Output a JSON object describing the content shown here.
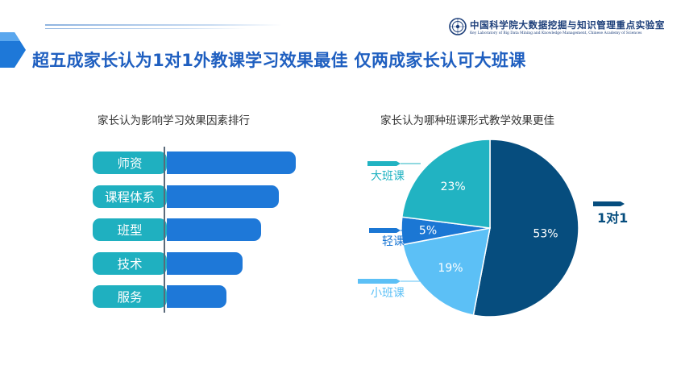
{
  "header": {
    "title": "超五成家长认为1对1外教课学习效果最佳 仅两成家长认可大班课",
    "logo_cn": "中国科学院大数据挖掘与知识管理重点实验室",
    "logo_en": "Key Laboratory of Big Data Mining and Knowledge Management, Chinese Academy of Sciences"
  },
  "colors": {
    "title": "#1f5fc0",
    "bar": "#1e78d8",
    "pill": "#1fb0c0",
    "slice_1v1": "#064d7e",
    "slice_small": "#5cc0f6",
    "slice_light": "#1b77d4",
    "slice_big": "#21b3c2"
  },
  "chart_data": [
    {
      "type": "bar",
      "orientation": "horizontal",
      "title": "家长认为影响学习效果因素排行",
      "categories": [
        "师资",
        "课程体系",
        "班型",
        "技术",
        "服务"
      ],
      "values": [
        100,
        87,
        73,
        59,
        46
      ],
      "value_labels_shown": false
    },
    {
      "type": "pie",
      "title": "家长认为哪种班课形式教学效果更佳",
      "slices": [
        {
          "name": "1对1",
          "value": 53,
          "label": "53%",
          "color": "#064d7e"
        },
        {
          "name": "小班课",
          "value": 19,
          "label": "19%",
          "color": "#5cc0f6"
        },
        {
          "name": "轻课",
          "value": 5,
          "label": "5%",
          "color": "#1b77d4"
        },
        {
          "name": "大班课",
          "value": 23,
          "label": "23%",
          "color": "#21b3c2"
        }
      ]
    }
  ]
}
